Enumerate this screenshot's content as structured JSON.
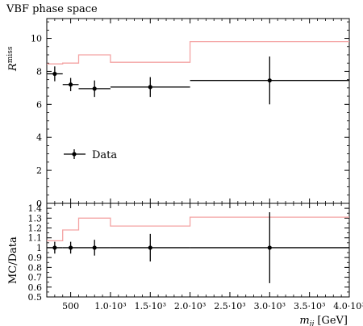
{
  "chart_data": [
    {
      "type": "line",
      "title": "VBF phase space",
      "ylabel": "R",
      "ylabel_sup": "miss",
      "ylim": [
        0,
        11.2
      ],
      "yticks": [
        0,
        2,
        4,
        6,
        8,
        10
      ],
      "xlim": [
        200,
        4000
      ],
      "series": [
        {
          "name": "",
          "style": "histogram",
          "color": "#f4a3a3",
          "bins": [
            [
              200,
              400,
              8.45
            ],
            [
              400,
              600,
              8.5
            ],
            [
              600,
              1000,
              9.0
            ],
            [
              1000,
              2000,
              8.55
            ],
            [
              2000,
              4000,
              9.8
            ]
          ]
        },
        {
          "name": "Data",
          "style": "points",
          "color": "#000000",
          "points": [
            {
              "x1": 200,
              "x2": 400,
              "y": 7.85,
              "err": 0.45
            },
            {
              "x1": 400,
              "x2": 600,
              "y": 7.2,
              "err": 0.4
            },
            {
              "x1": 600,
              "x2": 1000,
              "y": 6.95,
              "err": 0.5
            },
            {
              "x1": 1000,
              "x2": 2000,
              "y": 7.05,
              "err": 0.6
            },
            {
              "x1": 2000,
              "x2": 4000,
              "y": 7.45,
              "err": 1.45
            }
          ]
        }
      ],
      "legend": {
        "entries": [
          "Data"
        ],
        "position": "lower-left"
      }
    },
    {
      "type": "line",
      "ylabel": "MC/Data",
      "xlabel": "m",
      "xlabel_sub": "jj",
      "xlabel_unit": "[GeV]",
      "ylim": [
        0.5,
        1.45
      ],
      "yticks": [
        0.5,
        0.6,
        0.7,
        0.8,
        0.9,
        1,
        1.1,
        1.2,
        1.3,
        1.4
      ],
      "ytick_labels": [
        "0.5",
        "0.6",
        "0.7",
        "0.8",
        "0.9",
        "1",
        "1.1",
        "1.2",
        "1.3",
        "1.4"
      ],
      "xlim": [
        200,
        4000
      ],
      "xticks": [
        500,
        1000,
        1500,
        2000,
        2500,
        3000,
        3500,
        4000
      ],
      "xtick_labels": [
        "500",
        "1.0·10³",
        "1.5·10³",
        "2.0·10³",
        "2.5·10³",
        "3.0·10³",
        "3.5·10³",
        "4.0·10³"
      ],
      "series": [
        {
          "name": "",
          "style": "histogram",
          "color": "#f4a3a3",
          "bins": [
            [
              200,
              400,
              1.07
            ],
            [
              400,
              600,
              1.18
            ],
            [
              600,
              1000,
              1.3
            ],
            [
              1000,
              2000,
              1.22
            ],
            [
              2000,
              4000,
              1.31
            ]
          ]
        },
        {
          "name": "",
          "style": "points",
          "color": "#000000",
          "points": [
            {
              "x1": 200,
              "x2": 400,
              "y": 1,
              "err": 0.06
            },
            {
              "x1": 400,
              "x2": 600,
              "y": 1,
              "err": 0.06
            },
            {
              "x1": 600,
              "x2": 1000,
              "y": 1,
              "err": 0.08
            },
            {
              "x1": 1000,
              "x2": 2000,
              "y": 1,
              "err": 0.14
            },
            {
              "x1": 2000,
              "x2": 4000,
              "y": 1,
              "err": 0.36
            }
          ]
        }
      ]
    }
  ]
}
